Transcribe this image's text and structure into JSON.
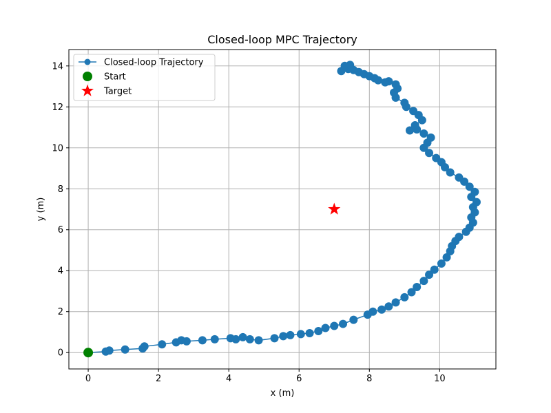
{
  "chart_data": {
    "type": "scatter",
    "title": "Closed-loop MPC Trajectory",
    "xlabel": "x (m)",
    "ylabel": "y (m)",
    "xlim": [
      -0.55,
      11.6
    ],
    "ylim": [
      -0.8,
      14.8
    ],
    "xticks": [
      0,
      2,
      4,
      6,
      8,
      10
    ],
    "yticks": [
      0,
      2,
      4,
      6,
      8,
      10,
      12,
      14
    ],
    "grid": true,
    "legend_position": "top-left",
    "colors": {
      "trajectory": "#1f77b4",
      "start": "#008000",
      "target": "#ff0000",
      "grid": "#b0b0b0"
    },
    "series": [
      {
        "name": "Closed-loop Trajectory",
        "marker": "circle",
        "line": true,
        "x": [
          0,
          0.5,
          0.6,
          1.05,
          1.55,
          1.6,
          2.1,
          2.5,
          2.65,
          2.8,
          3.25,
          3.6,
          4.05,
          4.2,
          4.4,
          4.6,
          4.85,
          5.3,
          5.55,
          5.75,
          6.05,
          6.3,
          6.55,
          6.75,
          7.0,
          7.25,
          7.55,
          7.95,
          8.1,
          8.35,
          8.55,
          8.75,
          9.0,
          9.2,
          9.35,
          9.55,
          9.7,
          9.85,
          10.05,
          10.2,
          10.3,
          10.35,
          10.45,
          10.55,
          10.75,
          10.85,
          10.95,
          10.9,
          11.0,
          10.95,
          11.05,
          10.9,
          11.0,
          10.85,
          10.7,
          10.55,
          10.3,
          10.15,
          10.05,
          9.9,
          9.7,
          9.55,
          9.65,
          9.75,
          9.55,
          9.35,
          9.15,
          9.3,
          9.5,
          9.4,
          9.25,
          9.05,
          9.0,
          8.75,
          8.7,
          8.8,
          8.75,
          8.55,
          8.45,
          8.25,
          8.15,
          8.0,
          7.85,
          7.7,
          7.55,
          7.4,
          7.2,
          7.3,
          7.45
        ],
        "y": [
          0,
          0.05,
          0.1,
          0.15,
          0.2,
          0.3,
          0.4,
          0.5,
          0.6,
          0.55,
          0.6,
          0.65,
          0.7,
          0.65,
          0.75,
          0.65,
          0.6,
          0.7,
          0.8,
          0.85,
          0.9,
          0.95,
          1.05,
          1.2,
          1.3,
          1.4,
          1.6,
          1.85,
          2.0,
          2.1,
          2.25,
          2.45,
          2.7,
          2.95,
          3.2,
          3.5,
          3.8,
          4.05,
          4.35,
          4.65,
          4.95,
          5.2,
          5.45,
          5.65,
          5.9,
          6.1,
          6.35,
          6.6,
          6.85,
          7.1,
          7.35,
          7.6,
          7.85,
          8.1,
          8.35,
          8.55,
          8.8,
          9.05,
          9.3,
          9.5,
          9.75,
          10.0,
          10.25,
          10.5,
          10.7,
          10.9,
          10.85,
          11.1,
          11.35,
          11.6,
          11.8,
          12.0,
          12.2,
          12.45,
          12.7,
          12.9,
          13.1,
          13.25,
          13.2,
          13.3,
          13.4,
          13.5,
          13.6,
          13.7,
          13.8,
          13.85,
          13.75,
          14.0,
          14.05
        ]
      },
      {
        "name": "Start",
        "marker": "circle",
        "x": [
          0
        ],
        "y": [
          0
        ]
      },
      {
        "name": "Target",
        "marker": "star",
        "x": [
          7
        ],
        "y": [
          7
        ]
      }
    ]
  }
}
